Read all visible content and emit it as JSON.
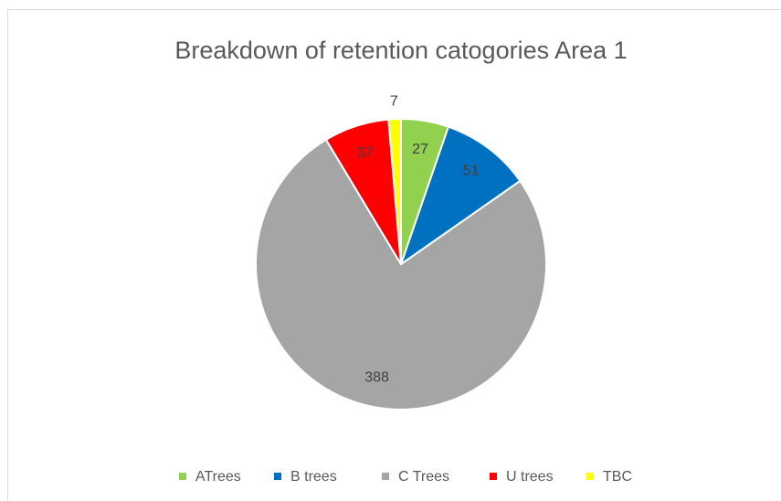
{
  "chart_data": {
    "type": "pie",
    "title": "Breakdown of retention catogories Area 1",
    "categories": [
      "ATrees",
      "B trees",
      "C Trees",
      "U trees",
      "TBC"
    ],
    "values": [
      27,
      51,
      388,
      37,
      7
    ],
    "colors": [
      "#92d050",
      "#0070c0",
      "#a5a5a5",
      "#ff0000",
      "#ffff00"
    ],
    "legend": "bottom"
  }
}
